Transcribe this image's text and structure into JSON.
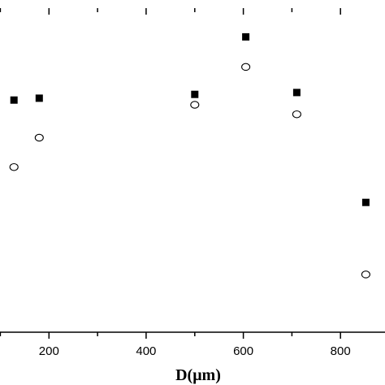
{
  "chart_data": {
    "type": "scatter",
    "title": "",
    "xlabel": "D(μm)",
    "ylabel": "",
    "xlim": [
      0,
      900
    ],
    "ylim": [
      0,
      100
    ],
    "x_ticks": [
      200,
      400,
      600,
      800
    ],
    "grid": false,
    "legend": "none",
    "series": [
      {
        "marker": "filled-square",
        "color": "#000000",
        "points": [
          {
            "x": 128,
            "y": 71
          },
          {
            "x": 180,
            "y": 71.6
          },
          {
            "x": 500,
            "y": 72.8
          },
          {
            "x": 605,
            "y": 91
          },
          {
            "x": 710,
            "y": 73.4
          },
          {
            "x": 852,
            "y": 38.6
          }
        ]
      },
      {
        "marker": "open-circle",
        "color": "#000000",
        "points": [
          {
            "x": 128,
            "y": 49.8
          },
          {
            "x": 180,
            "y": 59.1
          },
          {
            "x": 500,
            "y": 69.5
          },
          {
            "x": 605,
            "y": 81.5
          },
          {
            "x": 710,
            "y": 66.5
          },
          {
            "x": 852,
            "y": 15.8
          }
        ]
      }
    ]
  }
}
